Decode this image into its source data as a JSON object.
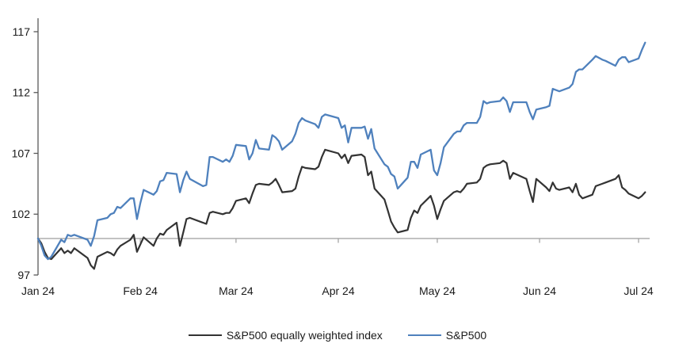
{
  "chart_data": {
    "type": "line",
    "title": "",
    "xlabel": "",
    "ylabel": "",
    "grid": false,
    "legend_position": "bottom",
    "baseline": 100,
    "ylim": [
      97,
      118.1
    ],
    "y_ticks": [
      97,
      102,
      107,
      112,
      117
    ],
    "x_ticks": [
      {
        "label": "Jan 24",
        "day": 0
      },
      {
        "label": "Feb 24",
        "day": 31
      },
      {
        "label": "Mar 24",
        "day": 60
      },
      {
        "label": "Apr 24",
        "day": 91
      },
      {
        "label": "May 24",
        "day": 121
      },
      {
        "label": "Jun 24",
        "day": 152
      },
      {
        "label": "Jul 24",
        "day": 182
      }
    ],
    "x": [
      "01-01",
      "01-02",
      "01-03",
      "01-04",
      "01-05",
      "01-08",
      "01-09",
      "01-10",
      "01-11",
      "01-12",
      "01-16",
      "01-17",
      "01-18",
      "01-19",
      "01-22",
      "01-23",
      "01-24",
      "01-25",
      "01-26",
      "01-29",
      "01-30",
      "01-31",
      "02-01",
      "02-02",
      "02-05",
      "02-06",
      "02-07",
      "02-08",
      "02-09",
      "02-12",
      "02-13",
      "02-14",
      "02-15",
      "02-16",
      "02-20",
      "02-21",
      "02-22",
      "02-23",
      "02-26",
      "02-27",
      "02-28",
      "02-29",
      "03-01",
      "03-04",
      "03-05",
      "03-06",
      "03-07",
      "03-08",
      "03-11",
      "03-12",
      "03-13",
      "03-14",
      "03-15",
      "03-18",
      "03-19",
      "03-20",
      "03-21",
      "03-22",
      "03-25",
      "03-26",
      "03-27",
      "03-28",
      "04-01",
      "04-02",
      "04-03",
      "04-04",
      "04-05",
      "04-08",
      "04-09",
      "04-10",
      "04-11",
      "04-12",
      "04-15",
      "04-16",
      "04-17",
      "04-18",
      "04-19",
      "04-22",
      "04-23",
      "04-24",
      "04-25",
      "04-26",
      "04-29",
      "04-30",
      "05-01",
      "05-02",
      "05-03",
      "05-06",
      "05-07",
      "05-08",
      "05-09",
      "05-10",
      "05-13",
      "05-14",
      "05-15",
      "05-16",
      "05-17",
      "05-20",
      "05-21",
      "05-22",
      "05-23",
      "05-24",
      "05-28",
      "05-29",
      "05-30",
      "05-31",
      "06-03",
      "06-04",
      "06-05",
      "06-06",
      "06-07",
      "06-10",
      "06-11",
      "06-12",
      "06-13",
      "06-14",
      "06-17",
      "06-18",
      "06-20",
      "06-21",
      "06-24",
      "06-25",
      "06-26",
      "06-27",
      "06-28",
      "07-01",
      "07-02",
      "07-03"
    ],
    "series": [
      {
        "name": "S&P500 equally weighted index",
        "color": "#333333",
        "values": [
          100,
          99.6,
          98.9,
          98.4,
          98.3,
          99.2,
          98.8,
          99,
          98.8,
          99.2,
          98.4,
          97.8,
          97.5,
          98.5,
          98.9,
          98.8,
          98.6,
          99.1,
          99.4,
          99.9,
          100.3,
          98.9,
          99.5,
          100.1,
          99.4,
          100,
          100.4,
          100.3,
          100.7,
          101.3,
          99.4,
          100.5,
          101.6,
          101.7,
          101.3,
          101.2,
          102.1,
          102.2,
          102,
          102.1,
          102.1,
          102.5,
          103.1,
          103.3,
          102.9,
          103.7,
          104.4,
          104.5,
          104.4,
          104.6,
          104.9,
          104.4,
          103.8,
          103.9,
          104.1,
          105.1,
          105.9,
          105.8,
          105.7,
          105.9,
          106.7,
          107.3,
          107,
          106.6,
          106.9,
          106.2,
          106.8,
          106.9,
          106.7,
          105.2,
          105.5,
          104.1,
          103.2,
          102.3,
          101.4,
          100.9,
          100.5,
          100.7,
          101.7,
          102.3,
          102.1,
          102.7,
          103.5,
          102.7,
          101.6,
          102.4,
          103.1,
          103.8,
          103.9,
          103.8,
          104.1,
          104.5,
          104.6,
          104.9,
          105.8,
          106,
          106.1,
          106.2,
          106.4,
          106.2,
          104.9,
          105.4,
          104.9,
          103.9,
          103,
          104.9,
          104.2,
          103.9,
          104.6,
          104.1,
          104,
          104.2,
          103.8,
          104.5,
          103.6,
          103.3,
          103.6,
          104.3,
          104.5,
          104.6,
          104.9,
          105.2,
          104.2,
          104,
          103.7,
          103.3,
          103.5,
          103.8
        ]
      },
      {
        "name": "S&P500",
        "color": "#4F81BD",
        "values": [
          100,
          99.4,
          98.6,
          98.3,
          98.5,
          99.9,
          99.7,
          100.3,
          100.2,
          100.3,
          99.9,
          99.4,
          100.2,
          101.5,
          101.7,
          102,
          102.1,
          102.6,
          102.5,
          103.3,
          103.3,
          101.6,
          102.9,
          104,
          103.6,
          103.9,
          104.7,
          104.8,
          105.4,
          105.3,
          103.8,
          104.8,
          105.5,
          104.9,
          104.3,
          104.4,
          106.7,
          106.7,
          106.3,
          106.5,
          106.3,
          106.8,
          107.7,
          107.6,
          106.5,
          107,
          108.1,
          107.4,
          107.3,
          108.5,
          108.3,
          108,
          107.3,
          108,
          108.6,
          109.5,
          109.9,
          109.7,
          109.4,
          109.1,
          110,
          110.2,
          109.9,
          109.1,
          109.3,
          107.9,
          109.1,
          109.1,
          109.2,
          108.2,
          109,
          107.4,
          106.1,
          105.9,
          105.3,
          105.1,
          104.1,
          105,
          106.3,
          106.3,
          105.8,
          106.9,
          107.3,
          105.6,
          105.2,
          106.2,
          107.5,
          108.6,
          108.8,
          108.8,
          109.3,
          109.5,
          109.5,
          110,
          111.3,
          111.1,
          111.2,
          111.3,
          111.6,
          111.3,
          110.4,
          111.2,
          111.2,
          110.4,
          109.8,
          110.6,
          110.8,
          110.9,
          112.3,
          112.2,
          112.1,
          112.4,
          112.7,
          113.7,
          113.9,
          113.9,
          114.7,
          115,
          114.7,
          114.6,
          114.2,
          114.7,
          114.9,
          114.9,
          114.5,
          114.8,
          115.5,
          116.1
        ]
      }
    ],
    "colors": {
      "y_axis": "#595959",
      "baseline_line": "#a6a6a6",
      "tick_label": "#1a1a1a"
    }
  }
}
